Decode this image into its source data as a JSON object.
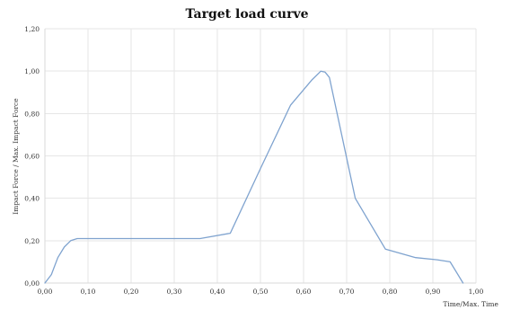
{
  "chart_data": {
    "type": "line",
    "title": "Target load curve",
    "xlabel": "Time/Max. Time",
    "ylabel": "Impact Force / Max. Impact Force",
    "xlim": [
      0,
      1
    ],
    "ylim": [
      0,
      1.2
    ],
    "x_ticks": [
      "0,00",
      "0,10",
      "0,20",
      "0,30",
      "0,40",
      "0,50",
      "0,60",
      "0,70",
      "0,80",
      "0,90",
      "1,00"
    ],
    "y_ticks": [
      "0,00",
      "0,20",
      "0,40",
      "0,60",
      "0,80",
      "1,00",
      "1,20"
    ],
    "grid": true,
    "legend": "none",
    "series": [
      {
        "color": "#7fa3cf",
        "x": [
          0.0,
          0.015,
          0.03,
          0.045,
          0.06,
          0.075,
          0.15,
          0.25,
          0.36,
          0.43,
          0.5,
          0.57,
          0.62,
          0.64,
          0.65,
          0.66,
          0.72,
          0.79,
          0.86,
          0.91,
          0.94,
          0.97
        ],
        "y": [
          0.0,
          0.04,
          0.12,
          0.17,
          0.2,
          0.21,
          0.21,
          0.21,
          0.21,
          0.235,
          0.54,
          0.84,
          0.96,
          1.0,
          0.995,
          0.97,
          0.4,
          0.16,
          0.12,
          0.11,
          0.1,
          0.0
        ]
      }
    ]
  }
}
